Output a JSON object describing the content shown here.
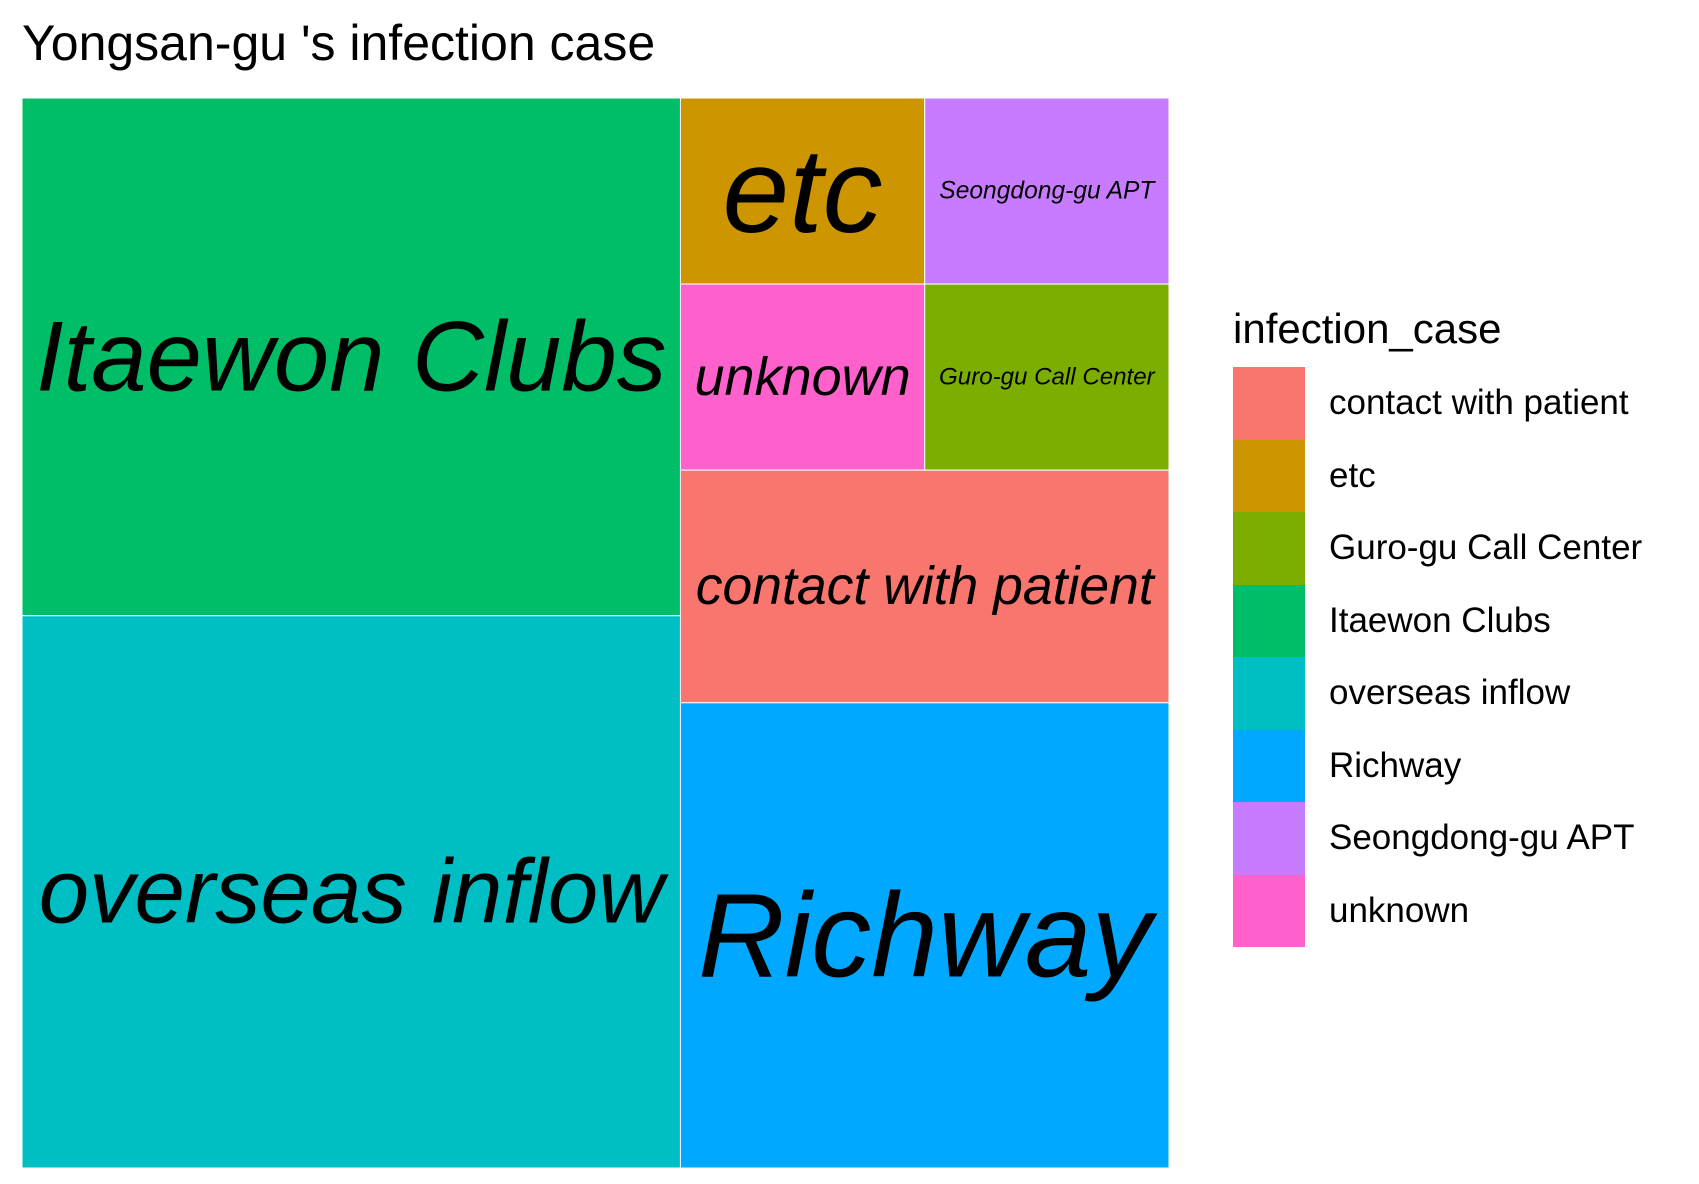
{
  "chart_data": {
    "type": "treemap",
    "title": "Yongsan-gu 's infection case",
    "legend_title": "infection_case",
    "legend_position": "right",
    "legend_order": [
      "contact with patient",
      "etc",
      "Guro-gu Call Center",
      "Itaewon Clubs",
      "overseas inflow",
      "Richway",
      "Seongdong-gu APT",
      "unknown"
    ],
    "items": [
      {
        "label": "Itaewon Clubs",
        "value": 30,
        "color": "#00BE67"
      },
      {
        "label": "overseas inflow",
        "value": 32,
        "color": "#00BFC4"
      },
      {
        "label": "Richway",
        "value": 20,
        "color": "#00A9FF"
      },
      {
        "label": "contact with patient",
        "value": 10,
        "color": "#F8766D"
      },
      {
        "label": "etc",
        "value": 4,
        "color": "#CD9600"
      },
      {
        "label": "Seongdong-gu APT",
        "value": 4,
        "color": "#C77CFF"
      },
      {
        "label": "unknown",
        "value": 4,
        "color": "#FF61CC"
      },
      {
        "label": "Guro-gu Call Center",
        "value": 4,
        "color": "#7CAE00"
      }
    ]
  }
}
